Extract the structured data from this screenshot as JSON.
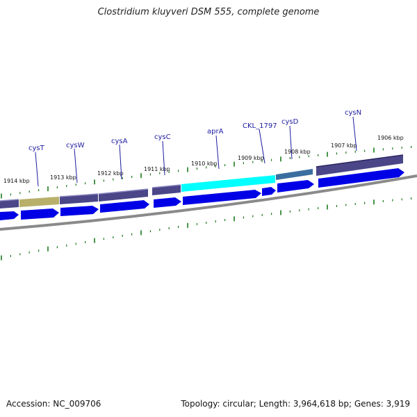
{
  "title": "Clostridium kluyveri DSM 555, complete genome",
  "footer": {
    "accession": "Accession: NC_009706",
    "summary": "Topology: circular; Length: 3,964,618 bp; Genes: 3,919"
  },
  "colors": {
    "gene_label": "#1a1aa0",
    "cds_arrow": "#0000e6",
    "gene_bar": "#4a4688",
    "highlight": "#00ffff",
    "other_bar": "#b8b06a",
    "tick": "#1a7a1a",
    "backbone": "#8a8a8a"
  },
  "ticks": [
    "1914 kbp",
    "1913 kbp",
    "1912 kbp",
    "1911 kbp",
    "1910 kbp",
    "1909 kbp",
    "1908 kbp",
    "1907 kbp",
    "1906 kbp"
  ],
  "genes": [
    "cysT",
    "cysW",
    "cysA",
    "cysC",
    "aprA",
    "CKL_1797",
    "cysD",
    "cysN"
  ]
}
